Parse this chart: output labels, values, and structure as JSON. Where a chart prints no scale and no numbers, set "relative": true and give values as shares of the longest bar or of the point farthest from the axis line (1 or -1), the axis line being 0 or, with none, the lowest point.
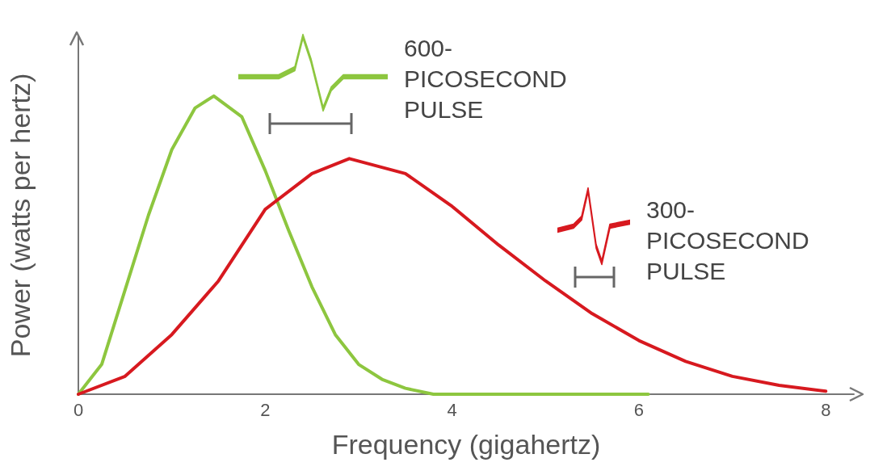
{
  "chart_data": {
    "type": "line",
    "xlabel": "Frequency (gigahertz)",
    "ylabel": "Power (watts per hertz)",
    "relative": true,
    "xlim": [
      0,
      8.3
    ],
    "xticks": [
      0,
      2,
      4,
      6,
      8
    ],
    "grid": false,
    "marker": "none",
    "line_style": "solid",
    "annotations": [
      "600-\nPICOSECOND\nPULSE",
      "300-\nPICOSECOND\nPULSE"
    ],
    "series": [
      {
        "color": "#8dc63f",
        "x": [
          0,
          0.25,
          0.5,
          0.75,
          1,
          1.25,
          1.45,
          1.75,
          2,
          2.25,
          2.5,
          2.75,
          3,
          3.25,
          3.5,
          3.8,
          4,
          5,
          6.1
        ],
        "values": [
          0,
          0.1,
          0.35,
          0.6,
          0.82,
          0.96,
          1,
          0.93,
          0.75,
          0.55,
          0.36,
          0.2,
          0.1,
          0.05,
          0.02,
          0,
          0,
          0,
          0
        ]
      },
      {
        "color": "#d7191f",
        "x": [
          0,
          0.5,
          1,
          1.5,
          2,
          2.5,
          2.9,
          3.5,
          4,
          4.5,
          5,
          5.5,
          6,
          6.5,
          7,
          7.5,
          8
        ],
        "values": [
          0,
          0.06,
          0.2,
          0.38,
          0.62,
          0.74,
          0.79,
          0.74,
          0.63,
          0.5,
          0.38,
          0.27,
          0.18,
          0.11,
          0.06,
          0.03,
          0.01
        ]
      }
    ]
  }
}
